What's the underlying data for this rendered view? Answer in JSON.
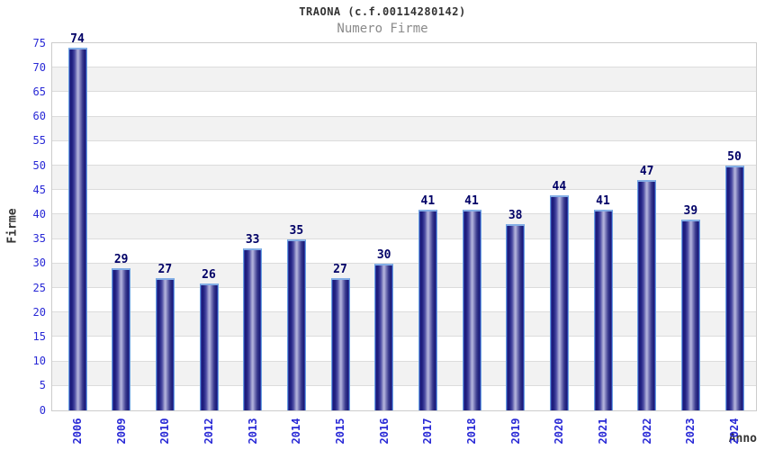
{
  "chart_data": {
    "type": "bar",
    "title": "TRAONA (c.f.00114280142)",
    "subtitle": "Numero Firme",
    "xlabel": "Anno",
    "ylabel": "Firme",
    "categories": [
      "2006",
      "2009",
      "2010",
      "2012",
      "2013",
      "2014",
      "2015",
      "2016",
      "2017",
      "2018",
      "2019",
      "2020",
      "2021",
      "2022",
      "2023",
      "2024"
    ],
    "values": [
      74,
      29,
      27,
      26,
      33,
      35,
      27,
      30,
      41,
      41,
      38,
      44,
      41,
      47,
      39,
      50
    ],
    "ylim": [
      0,
      75
    ],
    "yticks": [
      0,
      5,
      10,
      15,
      20,
      25,
      30,
      35,
      40,
      45,
      50,
      55,
      60,
      65,
      70,
      75
    ],
    "grid": "horizontal-bands",
    "legend": "none",
    "colors": {
      "bar_outline": "#3a4ec3",
      "bar_dark": "#1a1a75",
      "bar_mid": "#4d4da4",
      "bar_light": "#b5b5de",
      "bar_top_highlight": "#84aee6",
      "axis_tick_label": "#2929d6",
      "value_label": "#000066",
      "band": "#f2f2f2",
      "gridline": "#dcdcdc",
      "plot_border": "#cccccc",
      "title": "#333333",
      "subtitle": "#8a8a8a"
    }
  }
}
